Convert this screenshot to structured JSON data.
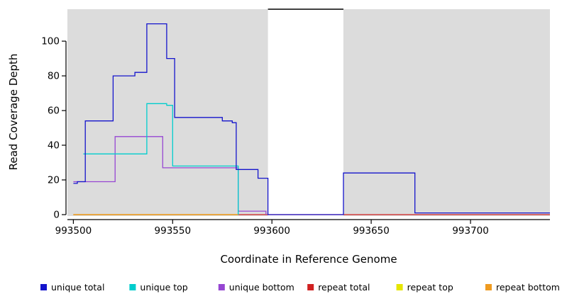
{
  "chart_data": {
    "type": "line",
    "line_style": "step",
    "title": "",
    "xlabel": "Coordinate in Reference Genome",
    "ylabel": "Read Coverage Depth",
    "xlim": [
      993497,
      993740
    ],
    "ylim": [
      0,
      118
    ],
    "xticks": [
      993500,
      993550,
      993600,
      993650,
      993700
    ],
    "yticks": [
      0,
      20,
      40,
      60,
      80,
      100
    ],
    "grid": false,
    "plot_background": "#dcdcdc",
    "masked_region": {
      "x_start": 993598,
      "x_end": 993636,
      "fill": "#ffffff"
    },
    "legend_position": "bottom",
    "draw_order": [
      3,
      4,
      5,
      2,
      1,
      0
    ],
    "series": [
      {
        "name": "unique total",
        "color": "#1414cc",
        "steps": [
          [
            993500,
            18
          ],
          [
            993502,
            19
          ],
          [
            993506,
            54
          ],
          [
            993520,
            80
          ],
          [
            993531,
            82
          ],
          [
            993537,
            110
          ],
          [
            993547,
            90
          ],
          [
            993551,
            56
          ],
          [
            993575,
            54
          ],
          [
            993580,
            53
          ],
          [
            993582,
            26
          ],
          [
            993593,
            21
          ],
          [
            993598,
            0
          ],
          [
            993636,
            24
          ],
          [
            993672,
            1
          ],
          [
            993740,
            1
          ]
        ]
      },
      {
        "name": "unique top",
        "color": "#00cdcd",
        "steps": [
          [
            993505,
            35
          ],
          [
            993537,
            64
          ],
          [
            993547,
            63
          ],
          [
            993550,
            28
          ],
          [
            993583,
            0
          ]
        ]
      },
      {
        "name": "unique bottom",
        "color": "#9646d2",
        "steps": [
          [
            993500,
            19
          ],
          [
            993521,
            45
          ],
          [
            993545,
            27
          ],
          [
            993583,
            2
          ],
          [
            993597,
            0
          ]
        ]
      },
      {
        "name": "repeat total",
        "color": "#d02020",
        "steps": [
          [
            993500,
            0
          ],
          [
            993740,
            0
          ]
        ]
      },
      {
        "name": "repeat top",
        "color": "#e6e600",
        "steps": [
          [
            993500,
            0
          ],
          [
            993583,
            0
          ]
        ]
      },
      {
        "name": "repeat bottom",
        "color": "#ef9b20",
        "steps": [
          [
            993500,
            0
          ],
          [
            993583,
            0
          ]
        ]
      }
    ]
  }
}
